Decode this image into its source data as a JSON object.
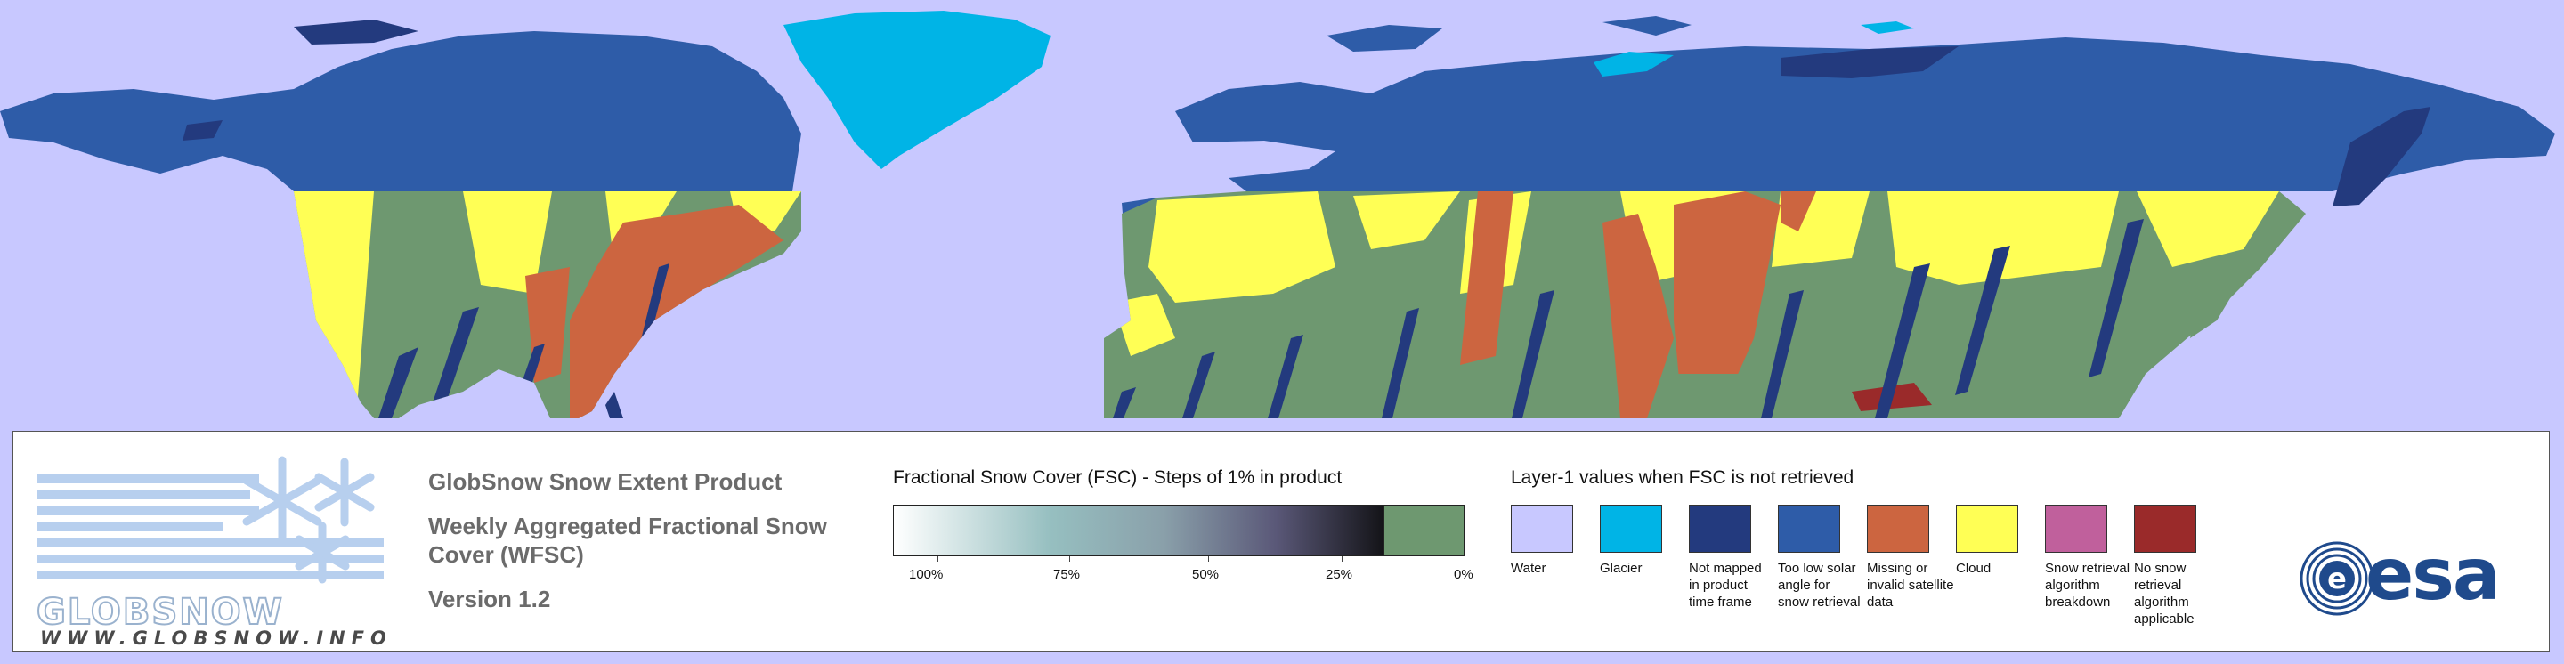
{
  "colors": {
    "water": "#c8c8ff",
    "glacier": "#00b4e6",
    "not_mapped": "#233a7e",
    "low_solar_angle": "#2e5ca8",
    "missing_invalid": "#cc6540",
    "cloud": "#ffff55",
    "retrieval_breakdown": "#c0609c",
    "not_applicable": "#9a2a2a",
    "snow_free": "#6e9870"
  },
  "logo": {
    "word": "GLOBSNOW",
    "url": "WWW.GLOBSNOW.INFO",
    "icon": "snowflake-icon"
  },
  "titles": {
    "product": "GlobSnow Snow Extent Product",
    "subtitle": "Weekly Aggregated Fractional Snow Cover (WFSC)",
    "version": "Version 1.2"
  },
  "fsc_legend": {
    "heading": "Fractional Snow Cover (FSC) - Steps of 1% in product",
    "ticks": [
      "100%",
      "75%",
      "50%",
      "25%",
      "0%"
    ]
  },
  "layer1_legend": {
    "heading": "Layer-1 values when FSC is not retrieved",
    "items": [
      {
        "label": "Water",
        "color": "#c8c8ff"
      },
      {
        "label": "Glacier",
        "color": "#00b4e6"
      },
      {
        "label": "Not mapped in product time frame",
        "color": "#233a7e"
      },
      {
        "label": "Too low solar angle for snow retrieval",
        "color": "#2e5ca8"
      },
      {
        "label": "Missing or invalid satellite data",
        "color": "#cc6540"
      },
      {
        "label": "Cloud",
        "color": "#ffff55"
      },
      {
        "label": "Snow retrieval algorithm breakdown",
        "color": "#c0609c"
      },
      {
        "label": "No snow retrieval algorithm applicable",
        "color": "#9a2a2a"
      }
    ]
  },
  "esa_logo": {
    "text": "esa",
    "icon": "esa-swirl-icon"
  }
}
